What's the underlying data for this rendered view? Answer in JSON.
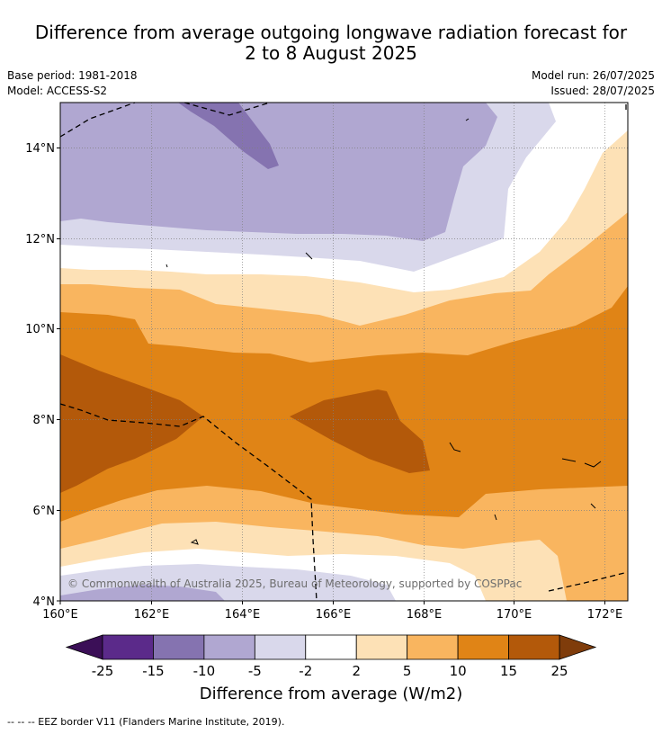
{
  "title_line1": "Difference from average outgoing longwave radiation forecast for",
  "title_line2": "2 to 8 August 2025",
  "base_period": "Base period: 1981-2018",
  "model": "Model: ACCESS-S2",
  "model_run": "Model run: 26/07/2025",
  "issued": "Issued: 28/07/2025",
  "copyright": "© Commonwealth of Australia 2025, Bureau of Meteorology, supported by COSPPac",
  "footnote": "-- -- -- EEZ border V11 (Flanders Marine Institute, 2019).",
  "colorbar_title": "Difference from average (W/m2)",
  "x_ticks": [
    "160°E",
    "162°E",
    "164°E",
    "166°E",
    "168°E",
    "170°E",
    "172°E"
  ],
  "y_ticks": [
    "14°N",
    "12°N",
    "10°N",
    "8°N",
    "6°N",
    "4°N"
  ],
  "colorbar": {
    "labels": [
      "-25",
      "-15",
      "-10",
      "-5",
      "-2",
      "2",
      "5",
      "10",
      "15",
      "25"
    ],
    "colors": [
      "#5b2a8a",
      "#8573b0",
      "#b0a7d1",
      "#d9d8eb",
      "#ffffff",
      "#fde1b6",
      "#f9b55f",
      "#e08416",
      "#b3590a"
    ],
    "low_extend": "#3b0f57",
    "high_extend": "#7f3c0b"
  }
}
